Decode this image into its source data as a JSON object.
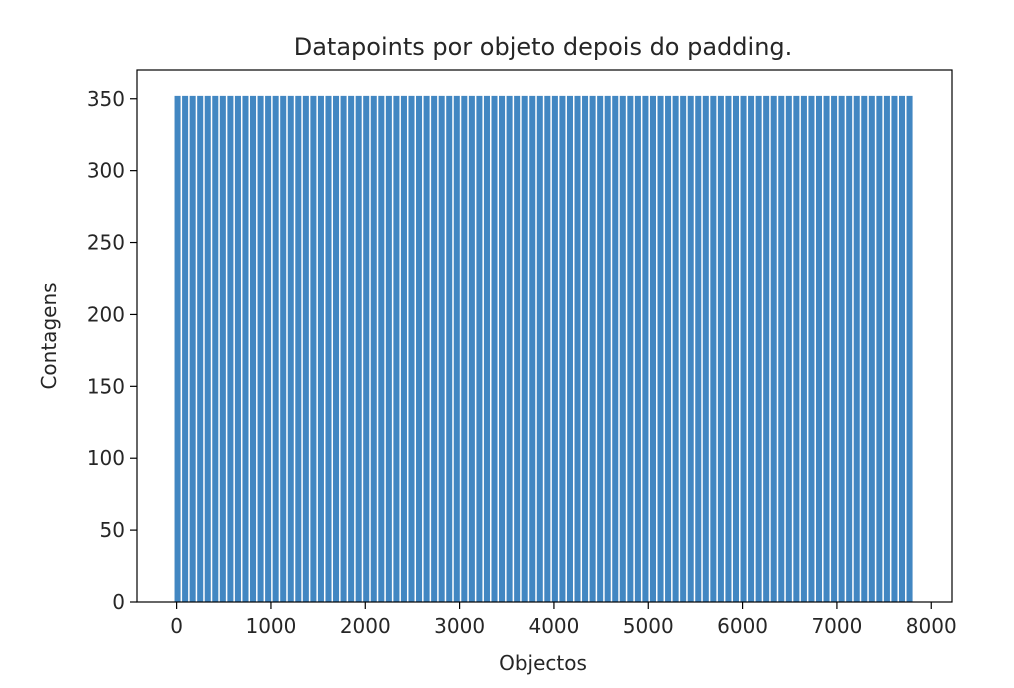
{
  "chart_data": {
    "type": "bar",
    "title": "Datapoints por objeto depois do padding.",
    "xlabel": "Objectos",
    "ylabel": "Contagens",
    "xlim": [
      -420,
      8220
    ],
    "ylim": [
      0,
      370
    ],
    "xticks": [
      0,
      1000,
      2000,
      3000,
      4000,
      5000,
      6000,
      7000,
      8000
    ],
    "yticks": [
      0,
      50,
      100,
      150,
      200,
      250,
      300,
      350
    ],
    "grid": false,
    "bar_color": "#4287c2",
    "bar_gap_color": "#ffffff",
    "series": [
      {
        "x": [
          10,
          90,
          170,
          250,
          330,
          410,
          490,
          570,
          650,
          730,
          810,
          890,
          970,
          1050,
          1130,
          1210,
          1290,
          1370,
          1450,
          1530,
          1610,
          1690,
          1770,
          1850,
          1930,
          2010,
          2090,
          2170,
          2250,
          2330,
          2410,
          2490,
          2570,
          2650,
          2730,
          2810,
          2890,
          2970,
          3050,
          3130,
          3210,
          3290,
          3370,
          3450,
          3530,
          3610,
          3690,
          3770,
          3850,
          3930,
          4010,
          4090,
          4170,
          4250,
          4330,
          4410,
          4490,
          4570,
          4650,
          4730,
          4810,
          4890,
          4970,
          5050,
          5130,
          5210,
          5290,
          5370,
          5450,
          5530,
          5610,
          5690,
          5770,
          5850,
          5930,
          6010,
          6090,
          6170,
          6250,
          6330,
          6410,
          6490,
          6570,
          6650,
          6730,
          6810,
          6890,
          6970,
          7050,
          7130,
          7210,
          7290,
          7370,
          7450,
          7530,
          7610,
          7690,
          7770
        ],
        "values": [
          352,
          352,
          352,
          352,
          352,
          352,
          352,
          352,
          352,
          352,
          352,
          352,
          352,
          352,
          352,
          352,
          352,
          352,
          352,
          352,
          352,
          352,
          352,
          352,
          352,
          352,
          352,
          352,
          352,
          352,
          352,
          352,
          352,
          352,
          352,
          352,
          352,
          352,
          352,
          352,
          352,
          352,
          352,
          352,
          352,
          352,
          352,
          352,
          352,
          352,
          352,
          352,
          352,
          352,
          352,
          352,
          352,
          352,
          352,
          352,
          352,
          352,
          352,
          352,
          352,
          352,
          352,
          352,
          352,
          352,
          352,
          352,
          352,
          352,
          352,
          352,
          352,
          352,
          352,
          352,
          352,
          352,
          352,
          352,
          352,
          352,
          352,
          352,
          352,
          352,
          352,
          352,
          352,
          352,
          352,
          352,
          352,
          352
        ]
      }
    ]
  }
}
